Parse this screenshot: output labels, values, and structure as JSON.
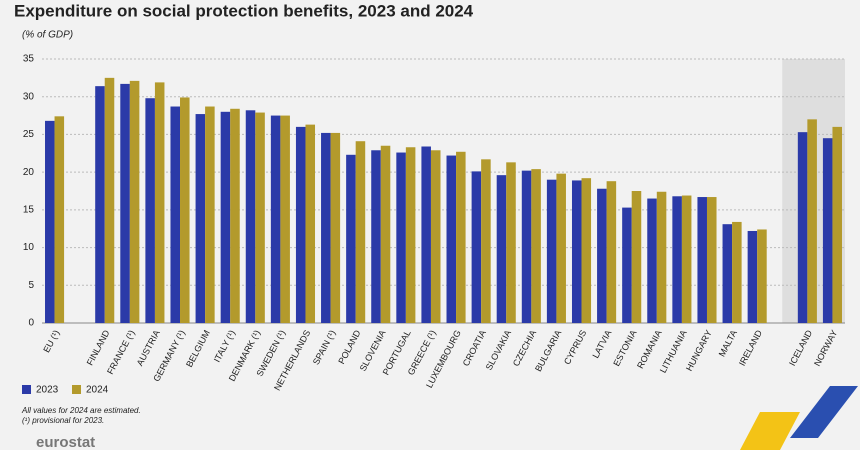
{
  "chart_data": {
    "type": "bar",
    "title": "Expenditure on social protection benefits, 2023 and 2024",
    "subtitle": "(% of GDP)",
    "categories": [
      "EU (¹)",
      null,
      "FINLAND",
      "FRANCE (¹)",
      "AUSTRIA",
      "GERMANY (¹)",
      "BELGIUM",
      "ITALY (¹)",
      "DENMARK (¹)",
      "SWEDEN (¹)",
      "NETHERLANDS",
      "SPAIN (¹)",
      "POLAND",
      "SLOVENIA",
      "PORTUGAL",
      "GREECE (¹)",
      "LUXEMBOURG",
      "CROATIA",
      "SLOVAKIA",
      "CZECHIA",
      "BULGARIA",
      "CYPRUS",
      "LATVIA",
      "ESTONIA",
      "ROMANIA",
      "LITHUANIA",
      "HUNGARY",
      "MALTA",
      "IRELAND",
      null,
      "ICELAND",
      "NORWAY"
    ],
    "series": [
      {
        "name": "2023",
        "color": "#2b3aa8",
        "values": [
          26.8,
          null,
          31.4,
          31.7,
          29.8,
          28.7,
          27.7,
          28.0,
          28.2,
          27.5,
          26.0,
          25.2,
          22.3,
          22.9,
          22.6,
          23.4,
          22.2,
          20.1,
          19.6,
          20.2,
          19.0,
          18.9,
          17.8,
          15.3,
          16.5,
          16.8,
          16.7,
          13.1,
          12.2,
          null,
          25.3,
          24.5
        ]
      },
      {
        "name": "2024",
        "color": "#b39a2c",
        "values": [
          27.4,
          null,
          32.5,
          32.1,
          31.9,
          29.9,
          28.7,
          28.4,
          27.9,
          27.5,
          26.3,
          25.2,
          24.1,
          23.5,
          23.3,
          22.9,
          22.7,
          21.7,
          21.3,
          20.4,
          19.8,
          19.2,
          18.8,
          17.5,
          17.4,
          16.9,
          16.7,
          13.4,
          12.4,
          null,
          27.0,
          26.0
        ]
      }
    ],
    "ylim": [
      0,
      35
    ],
    "yticks": [
      0,
      5,
      10,
      15,
      20,
      25,
      30,
      35
    ],
    "grid": true,
    "notes": [
      "All values for 2024 are estimated.",
      "(¹) provisional for 2023."
    ],
    "logo": "eurostat"
  }
}
